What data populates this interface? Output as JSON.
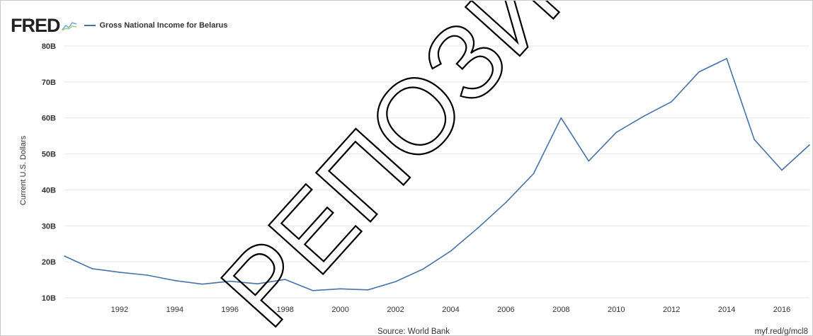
{
  "header": {
    "logo_text": "FRED",
    "logo_icon": "fred-mini-chart-icon"
  },
  "watermark": {
    "text": "РЕПОЗИТОРИЙ БГУ"
  },
  "colors": {
    "series": "#4572a7",
    "grid": "#e6e6e6",
    "axis_text": "#333333",
    "watermark": "#000000"
  },
  "chart_data": {
    "type": "line",
    "title": "",
    "xlabel": "",
    "ylabel": "Current U.S. Dollars",
    "ylim": [
      10,
      80
    ],
    "xlim": [
      1990,
      2017
    ],
    "yticks": [
      10,
      20,
      30,
      40,
      50,
      60,
      70,
      80
    ],
    "ytick_labels": [
      "10B",
      "20B",
      "30B",
      "40B",
      "50B",
      "60B",
      "70B",
      "80B"
    ],
    "xticks": [
      1992,
      1994,
      1996,
      1998,
      2000,
      2002,
      2004,
      2006,
      2008,
      2010,
      2012,
      2014,
      2016
    ],
    "xtick_labels": [
      "1992",
      "1994",
      "1996",
      "1998",
      "2000",
      "2002",
      "2004",
      "2006",
      "2008",
      "2010",
      "2012",
      "2014",
      "2016"
    ],
    "grid": true,
    "legend": "top-left",
    "source": "Source: World Bank",
    "url": "myf.red/g/mcl8",
    "series": [
      {
        "name": "Gross National Income for Belarus",
        "x": [
          1990,
          1991,
          1992,
          1993,
          1994,
          1995,
          1996,
          1997,
          1998,
          1999,
          2000,
          2001,
          2002,
          2003,
          2004,
          2005,
          2006,
          2007,
          2008,
          2009,
          2010,
          2011,
          2012,
          2013,
          2014,
          2015,
          2016,
          2017
        ],
        "values": [
          21.6,
          18.1,
          17.1,
          16.3,
          14.8,
          13.8,
          14.6,
          13.9,
          15.1,
          12.0,
          12.5,
          12.2,
          14.5,
          18.0,
          23.0,
          29.5,
          36.5,
          44.5,
          60.0,
          48.0,
          56.0,
          60.5,
          64.5,
          72.8,
          76.5,
          54.0,
          45.5,
          52.5
        ]
      }
    ]
  }
}
